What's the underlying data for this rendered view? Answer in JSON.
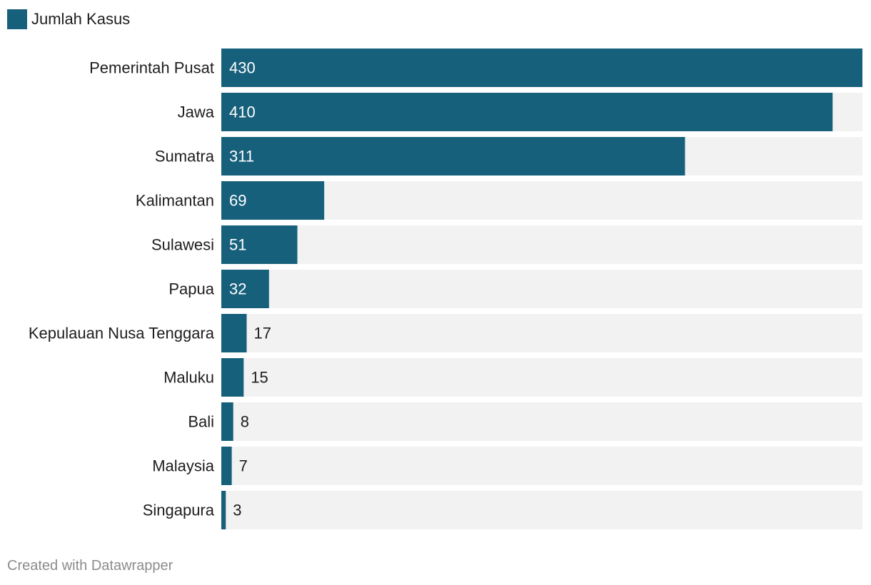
{
  "legend": {
    "label": "Jumlah Kasus",
    "color": "#17607b"
  },
  "colors": {
    "bar": "#17607b",
    "track": "#f2f2f2",
    "label_inside": "#ffffff",
    "label_outside": "#1d1d1d"
  },
  "chart_data": {
    "type": "bar",
    "orientation": "horizontal",
    "categories": [
      "Pemerintah Pusat",
      "Jawa",
      "Sumatra",
      "Kalimantan",
      "Sulawesi",
      "Papua",
      "Kepulauan Nusa Tenggara",
      "Maluku",
      "Bali",
      "Malaysia",
      "Singapura"
    ],
    "series": [
      {
        "name": "Jumlah Kasus",
        "values": [
          430,
          410,
          311,
          69,
          51,
          32,
          17,
          15,
          8,
          7,
          3
        ]
      }
    ],
    "xlim": [
      0,
      430
    ],
    "grid": false,
    "legend_position": "top-left"
  },
  "footer": {
    "credit": "Created with Datawrapper"
  }
}
